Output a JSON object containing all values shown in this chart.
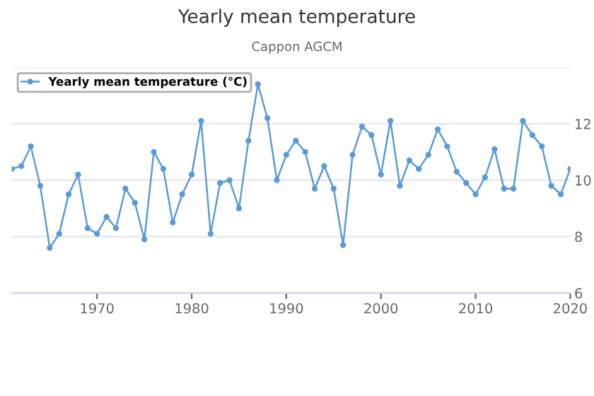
{
  "chart_data": {
    "type": "line",
    "title": "Yearly mean temperature",
    "subtitle": "Cappon AGCM",
    "x": [
      1961,
      1962,
      1963,
      1964,
      1965,
      1966,
      1967,
      1968,
      1969,
      1970,
      1971,
      1972,
      1973,
      1974,
      1975,
      1976,
      1977,
      1978,
      1979,
      1980,
      1981,
      1982,
      1983,
      1984,
      1985,
      1986,
      1987,
      1988,
      1989,
      1990,
      1991,
      1992,
      1993,
      1994,
      1995,
      1996,
      1997,
      1998,
      1999,
      2000,
      2001,
      2002,
      2003,
      2004,
      2005,
      2006,
      2007,
      2008,
      2009,
      2010,
      2011,
      2012,
      2013,
      2014,
      2015,
      2016,
      2017,
      2018,
      2019,
      2020
    ],
    "series": [
      {
        "name": "Yearly mean temperature (°C)",
        "color": "#5b9bd5",
        "values": [
          10.4,
          10.5,
          11.2,
          9.8,
          7.6,
          8.1,
          9.5,
          10.2,
          8.3,
          8.1,
          8.7,
          8.3,
          9.7,
          9.2,
          7.9,
          11.0,
          10.4,
          8.5,
          9.5,
          10.2,
          12.1,
          8.1,
          9.9,
          10.0,
          9.0,
          11.4,
          13.4,
          12.2,
          10.0,
          10.9,
          11.4,
          11.0,
          9.7,
          10.5,
          9.7,
          7.7,
          10.9,
          11.9,
          11.6,
          10.2,
          12.1,
          9.8,
          10.7,
          10.4,
          10.9,
          11.8,
          11.2,
          10.3,
          9.9,
          9.5,
          10.1,
          11.1,
          9.7,
          9.7,
          12.1,
          11.6,
          11.2,
          9.8,
          9.5,
          10.4
        ]
      }
    ],
    "xlim": [
      1961,
      2020
    ],
    "xticks": [
      1970,
      1980,
      1990,
      2000,
      2010,
      2020
    ],
    "ylim": [
      6,
      14
    ],
    "yticks": [
      6,
      8,
      10,
      12,
      {
        "value": 14,
        "label": null
      }
    ],
    "grid": "y",
    "legend": "top left",
    "marker": "circle",
    "line_style": "solid"
  }
}
